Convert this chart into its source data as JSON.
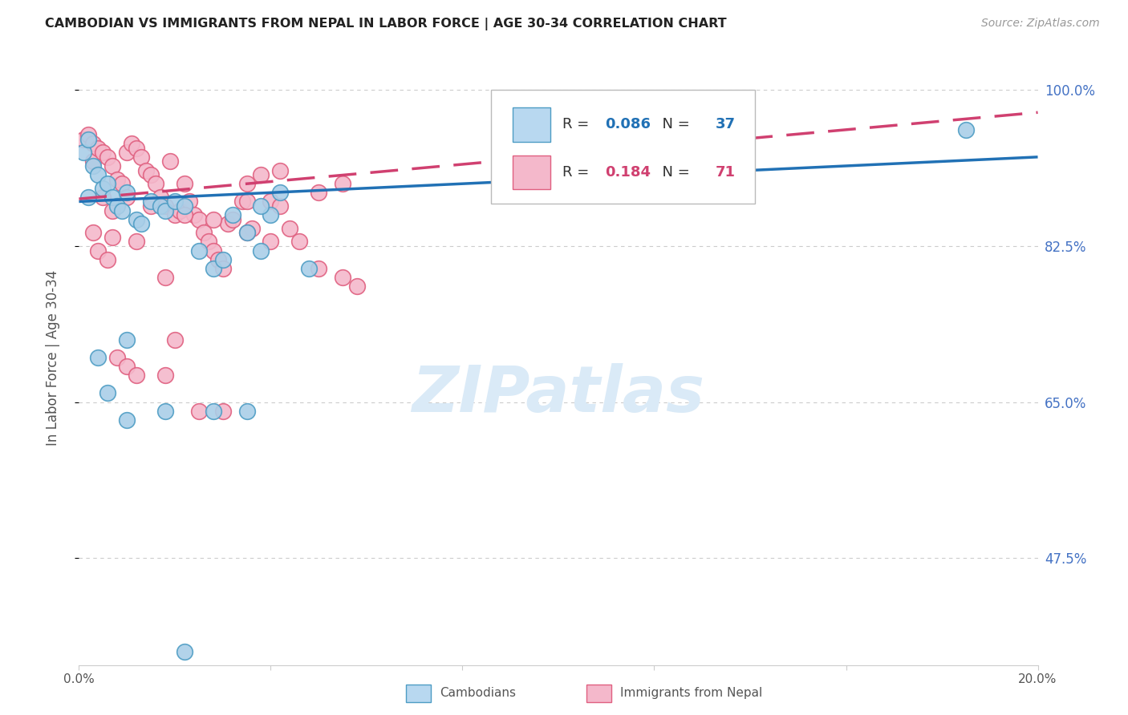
{
  "title": "CAMBODIAN VS IMMIGRANTS FROM NEPAL IN LABOR FORCE | AGE 30-34 CORRELATION CHART",
  "source": "Source: ZipAtlas.com",
  "ylabel": "In Labor Force | Age 30-34",
  "ytick_labels": [
    "100.0%",
    "82.5%",
    "65.0%",
    "47.5%"
  ],
  "ytick_values": [
    1.0,
    0.825,
    0.65,
    0.475
  ],
  "xmin": 0.0,
  "xmax": 0.2,
  "ymin": 0.355,
  "ymax": 1.045,
  "R_cambodian": 0.086,
  "N_cambodian": 37,
  "R_nepal": 0.184,
  "N_nepal": 71,
  "color_cambodian": "#aacfe8",
  "color_nepal": "#f4b8cb",
  "edge_color_cambodian": "#4e9dc4",
  "edge_color_nepal": "#e06080",
  "line_color_cambodian": "#2171b5",
  "line_color_nepal": "#d04070",
  "legend_box_color_cambodian": "#b8d8f0",
  "legend_box_color_nepal": "#f4b8cb",
  "ytick_color": "#4472C4",
  "watermark_color": "#daeaf7",
  "cam_line_y0": 0.875,
  "cam_line_y1": 0.925,
  "nep_line_y0": 0.878,
  "nep_line_y1": 0.975
}
